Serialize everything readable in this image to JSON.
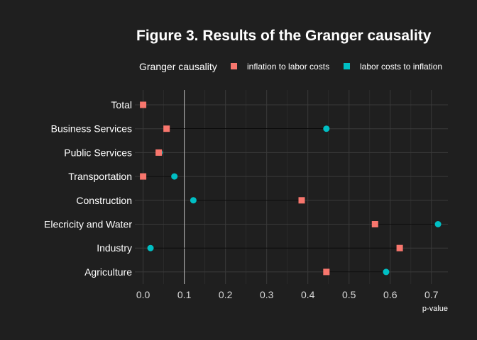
{
  "chart_data": {
    "type": "scatter",
    "title": "Figure 3. Results of the Granger causality",
    "xlabel": "p-value",
    "ylabel": "",
    "xlim": [
      -0.02,
      0.74
    ],
    "x_ticks": [
      0.0,
      0.1,
      0.2,
      0.3,
      0.4,
      0.5,
      0.6,
      0.7
    ],
    "x_tick_labels": [
      "0.0",
      "0.1",
      "0.2",
      "0.3",
      "0.4",
      "0.5",
      "0.6",
      "0.7"
    ],
    "reference_line_x": 0.1,
    "grid": true,
    "legend": {
      "title": "Granger causality",
      "placement": "top"
    },
    "categories": [
      "Total",
      "Business Services",
      "Public Services",
      "Transportation",
      "Construction",
      "Elecricity and Water",
      "Industry",
      "Agriculture"
    ],
    "series": [
      {
        "name": "inflation to labor costs",
        "marker": "square",
        "color": "#f8766d",
        "values": [
          0.0,
          0.057,
          0.038,
          0.0,
          0.385,
          0.563,
          0.623,
          0.445
        ]
      },
      {
        "name": "labor costs to inflation",
        "marker": "circle",
        "color": "#00bfc4",
        "values": [
          0.0,
          0.445,
          0.04,
          0.076,
          0.122,
          0.716,
          0.018,
          0.59
        ]
      }
    ]
  }
}
